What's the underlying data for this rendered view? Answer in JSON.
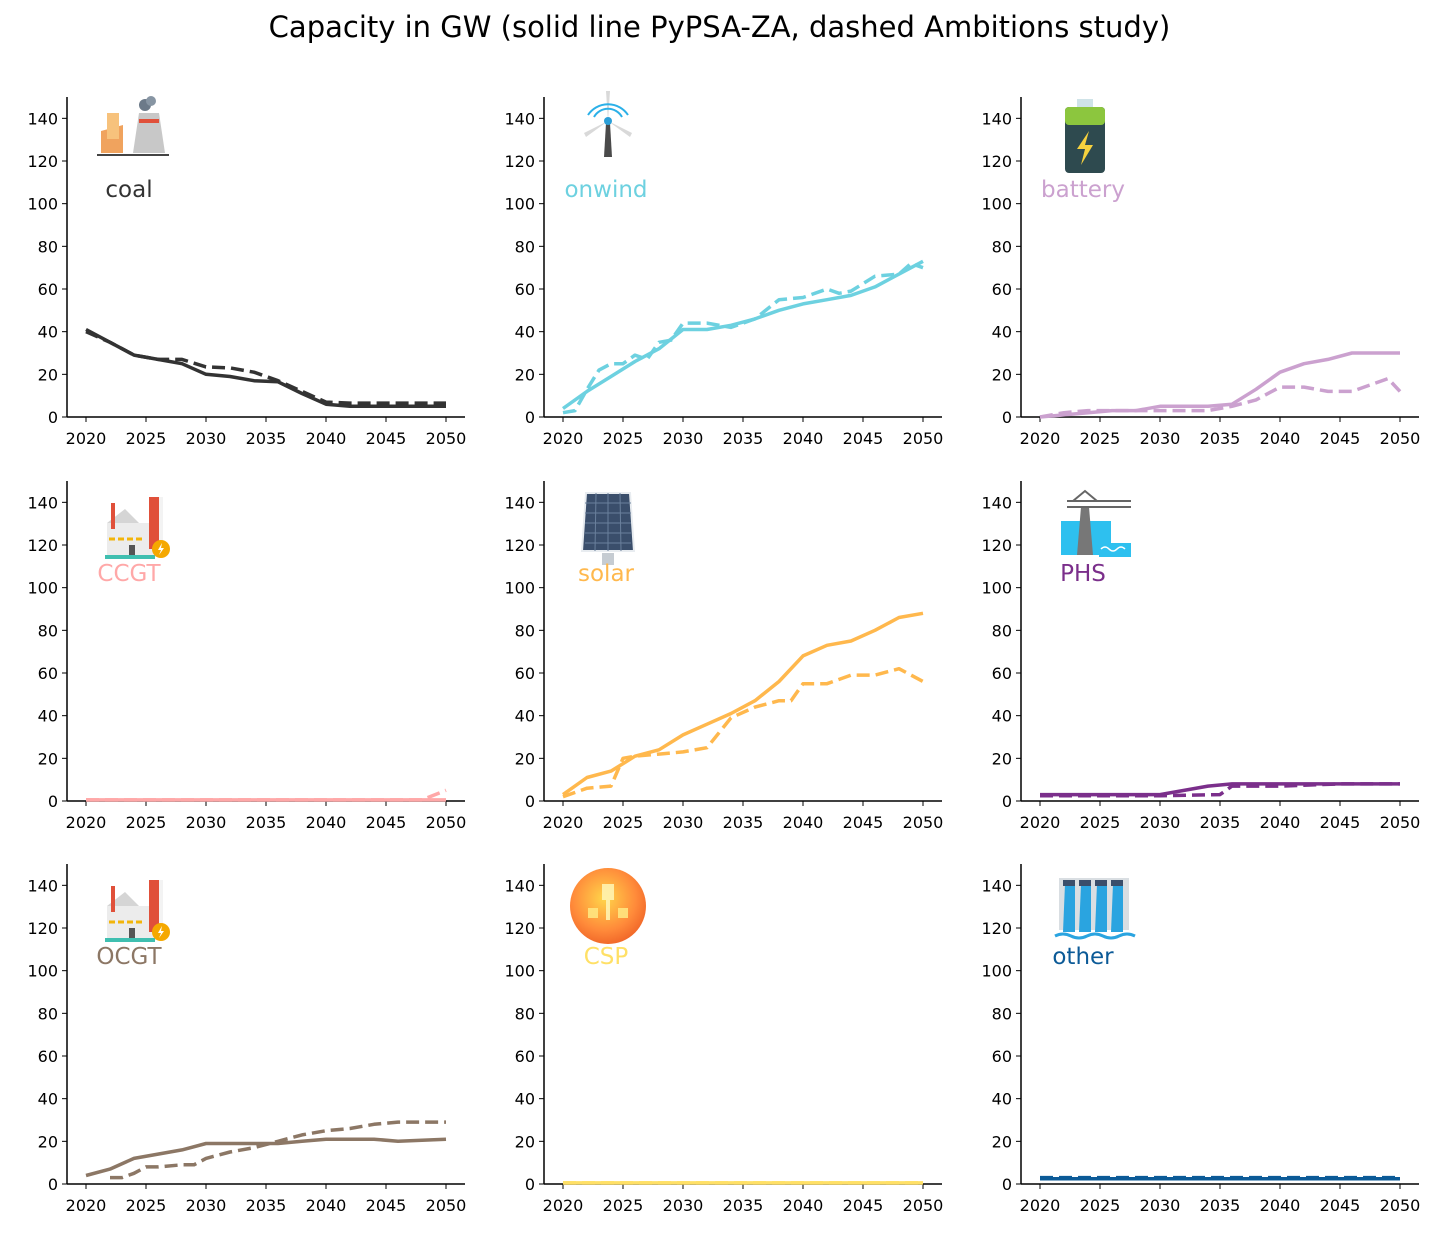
{
  "title": "Capacity in GW (solid line PyPSA-ZA, dashed Ambitions study)",
  "chart_data": [
    {
      "type": "line",
      "label": "coal",
      "label_color": "#333333",
      "icon": "power-plant-cooling-tower-icon",
      "xlim": [
        2020,
        2050
      ],
      "ylim": [
        0,
        150
      ],
      "xticks": [
        "2020",
        "2025",
        "2030",
        "2035",
        "2040",
        "2045",
        "2050"
      ],
      "yticks": [
        "0",
        "20",
        "40",
        "60",
        "80",
        "100",
        "120",
        "140"
      ],
      "series": [
        {
          "name": "PyPSA-ZA",
          "style": "solid",
          "color": "#333333",
          "x": [
            2020,
            2022,
            2024,
            2026,
            2028,
            2030,
            2032,
            2034,
            2036,
            2038,
            2040,
            2042,
            2044,
            2046,
            2048,
            2050
          ],
          "y": [
            41,
            35,
            29,
            27,
            25,
            20,
            19,
            17,
            16.5,
            11,
            6,
            5,
            5,
            5,
            5,
            5
          ]
        },
        {
          "name": "Ambitions study",
          "style": "dashed",
          "color": "#333333",
          "x": [
            2020,
            2022,
            2024,
            2026,
            2028,
            2030,
            2032,
            2034,
            2036,
            2038,
            2040,
            2042,
            2044,
            2046,
            2048,
            2050
          ],
          "y": [
            40,
            35,
            29,
            27,
            27,
            23.5,
            23,
            21,
            17,
            12,
            7,
            6.5,
            6.5,
            6.5,
            6.5,
            6.5
          ]
        }
      ]
    },
    {
      "type": "line",
      "label": "onwind",
      "label_color": "#6dd1e0",
      "icon": "wind-turbine-icon",
      "xlim": [
        2020,
        2050
      ],
      "ylim": [
        0,
        150
      ],
      "xticks": [
        "2020",
        "2025",
        "2030",
        "2035",
        "2040",
        "2045",
        "2050"
      ],
      "yticks": [
        "0",
        "20",
        "40",
        "60",
        "80",
        "100",
        "120",
        "140"
      ],
      "series": [
        {
          "name": "PyPSA-ZA",
          "style": "solid",
          "color": "#6dd1e0",
          "x": [
            2020,
            2022,
            2024,
            2026,
            2028,
            2030,
            2032,
            2034,
            2036,
            2038,
            2040,
            2042,
            2044,
            2046,
            2048,
            2050
          ],
          "y": [
            4,
            12,
            19,
            26,
            32,
            41,
            41,
            43,
            46,
            50,
            53,
            55,
            57,
            61,
            67,
            73
          ]
        },
        {
          "name": "Ambitions study",
          "style": "dashed",
          "color": "#6dd1e0",
          "x": [
            2020,
            2021,
            2022,
            2023,
            2024,
            2025,
            2026,
            2027,
            2028,
            2029,
            2030,
            2032,
            2034,
            2036,
            2038,
            2040,
            2042,
            2043,
            2044,
            2046,
            2048,
            2049,
            2050
          ],
          "y": [
            2,
            3,
            13,
            22,
            25,
            25,
            29,
            27,
            35,
            36,
            44,
            44,
            42,
            46,
            55,
            56,
            60,
            58,
            59,
            66,
            67,
            72,
            70
          ]
        }
      ]
    },
    {
      "type": "line",
      "label": "battery",
      "label_color": "#cba1cf",
      "icon": "battery-icon",
      "xlim": [
        2020,
        2050
      ],
      "ylim": [
        0,
        150
      ],
      "xticks": [
        "2020",
        "2025",
        "2030",
        "2035",
        "2040",
        "2045",
        "2050"
      ],
      "yticks": [
        "0",
        "20",
        "40",
        "60",
        "80",
        "100",
        "120",
        "140"
      ],
      "series": [
        {
          "name": "PyPSA-ZA",
          "style": "solid",
          "color": "#cba1cf",
          "x": [
            2020,
            2022,
            2024,
            2026,
            2028,
            2030,
            2032,
            2034,
            2036,
            2038,
            2040,
            2042,
            2044,
            2046,
            2048,
            2050
          ],
          "y": [
            0,
            1,
            2,
            3,
            3,
            5,
            5,
            5,
            6,
            13,
            21,
            25,
            27,
            30,
            30,
            30
          ]
        },
        {
          "name": "Ambitions study",
          "style": "dashed",
          "color": "#cba1cf",
          "x": [
            2020,
            2022,
            2024,
            2026,
            2028,
            2030,
            2032,
            2034,
            2036,
            2038,
            2040,
            2042,
            2044,
            2046,
            2048,
            2049,
            2050
          ],
          "y": [
            0,
            2,
            3,
            3,
            3,
            3,
            3,
            3,
            5,
            8,
            14,
            14,
            12,
            12,
            16,
            18,
            12
          ]
        }
      ]
    },
    {
      "type": "line",
      "label": "CCGT",
      "label_color": "#ffa8a8",
      "icon": "factory-icon",
      "xlim": [
        2020,
        2050
      ],
      "ylim": [
        0,
        150
      ],
      "xticks": [
        "2020",
        "2025",
        "2030",
        "2035",
        "2040",
        "2045",
        "2050"
      ],
      "yticks": [
        "0",
        "20",
        "40",
        "60",
        "80",
        "100",
        "120",
        "140"
      ],
      "series": [
        {
          "name": "PyPSA-ZA",
          "style": "solid",
          "color": "#ffa8a8",
          "x": [
            2020,
            2030,
            2040,
            2050
          ],
          "y": [
            0.5,
            0.5,
            0.5,
            0.5
          ]
        },
        {
          "name": "Ambitions study",
          "style": "dashed",
          "color": "#ffa8a8",
          "x": [
            2020,
            2030,
            2040,
            2046,
            2048,
            2050
          ],
          "y": [
            0.5,
            0.5,
            0.5,
            0.5,
            0.5,
            5
          ]
        }
      ]
    },
    {
      "type": "line",
      "label": "solar",
      "label_color": "#ffb84d",
      "icon": "solar-panel-icon",
      "xlim": [
        2020,
        2050
      ],
      "ylim": [
        0,
        150
      ],
      "xticks": [
        "2020",
        "2025",
        "2030",
        "2035",
        "2040",
        "2045",
        "2050"
      ],
      "yticks": [
        "0",
        "20",
        "40",
        "60",
        "80",
        "100",
        "120",
        "140"
      ],
      "series": [
        {
          "name": "PyPSA-ZA",
          "style": "solid",
          "color": "#ffb84d",
          "x": [
            2020,
            2022,
            2024,
            2026,
            2028,
            2030,
            2032,
            2034,
            2036,
            2038,
            2040,
            2042,
            2044,
            2046,
            2048,
            2050
          ],
          "y": [
            3,
            11,
            14,
            21,
            24,
            31,
            36,
            41,
            47,
            56,
            68,
            73,
            75,
            80,
            86,
            88
          ]
        },
        {
          "name": "Ambitions study",
          "style": "dashed",
          "color": "#ffb84d",
          "x": [
            2020,
            2022,
            2024,
            2025,
            2026,
            2028,
            2030,
            2032,
            2034,
            2036,
            2038,
            2039,
            2040,
            2042,
            2044,
            2046,
            2048,
            2050
          ],
          "y": [
            2,
            6,
            7,
            20,
            21,
            22,
            23,
            25,
            39,
            44,
            47,
            47,
            55,
            55,
            59,
            59,
            62,
            56
          ]
        }
      ]
    },
    {
      "type": "line",
      "label": "PHS",
      "label_color": "#7b2f8b",
      "icon": "hydro-pylon-icon",
      "xlim": [
        2020,
        2050
      ],
      "ylim": [
        0,
        150
      ],
      "xticks": [
        "2020",
        "2025",
        "2030",
        "2035",
        "2040",
        "2045",
        "2050"
      ],
      "yticks": [
        "0",
        "20",
        "40",
        "60",
        "80",
        "100",
        "120",
        "140"
      ],
      "series": [
        {
          "name": "PyPSA-ZA",
          "style": "solid",
          "color": "#7b2f8b",
          "x": [
            2020,
            2025,
            2030,
            2034,
            2036,
            2040,
            2045,
            2050
          ],
          "y": [
            3,
            3,
            3,
            7,
            8,
            8,
            8,
            8
          ]
        },
        {
          "name": "Ambitions study",
          "style": "dashed",
          "color": "#7b2f8b",
          "x": [
            2020,
            2025,
            2030,
            2035,
            2036,
            2038,
            2040,
            2045,
            2050
          ],
          "y": [
            2.5,
            2.5,
            2.5,
            3,
            7,
            7,
            7,
            8,
            8
          ]
        }
      ]
    },
    {
      "type": "line",
      "label": "OCGT",
      "label_color": "#8c7765",
      "icon": "factory-icon",
      "xlim": [
        2020,
        2050
      ],
      "ylim": [
        0,
        150
      ],
      "xticks": [
        "2020",
        "2025",
        "2030",
        "2035",
        "2040",
        "2045",
        "2050"
      ],
      "yticks": [
        "0",
        "20",
        "40",
        "60",
        "80",
        "100",
        "120",
        "140"
      ],
      "series": [
        {
          "name": "PyPSA-ZA",
          "style": "solid",
          "color": "#8c7765",
          "x": [
            2020,
            2022,
            2024,
            2026,
            2028,
            2030,
            2032,
            2034,
            2036,
            2038,
            2040,
            2042,
            2044,
            2046,
            2048,
            2050
          ],
          "y": [
            4,
            7,
            12,
            14,
            16,
            19,
            19,
            19,
            19,
            20,
            21,
            21,
            21,
            20,
            20.5,
            21
          ]
        },
        {
          "name": "Ambitions study",
          "style": "dashed",
          "color": "#8c7765",
          "x": [
            2022,
            2023,
            2024,
            2025,
            2026,
            2028,
            2029,
            2030,
            2032,
            2034,
            2036,
            2038,
            2040,
            2042,
            2044,
            2046,
            2048,
            2050
          ],
          "y": [
            3,
            3,
            5,
            8,
            8,
            9,
            9,
            12,
            15,
            17,
            20,
            23,
            25,
            26,
            28,
            29,
            29,
            29
          ]
        }
      ]
    },
    {
      "type": "line",
      "label": "CSP",
      "label_color": "#ffe066",
      "icon": "csp-tower-icon",
      "xlim": [
        2020,
        2050
      ],
      "ylim": [
        0,
        150
      ],
      "xticks": [
        "2020",
        "2025",
        "2030",
        "2035",
        "2040",
        "2045",
        "2050"
      ],
      "yticks": [
        "0",
        "20",
        "40",
        "60",
        "80",
        "100",
        "120",
        "140"
      ],
      "series": [
        {
          "name": "PyPSA-ZA",
          "style": "solid",
          "color": "#ffe066",
          "x": [
            2020,
            2050
          ],
          "y": [
            0.5,
            0.5
          ]
        },
        {
          "name": "Ambitions study",
          "style": "dashed",
          "color": "#ffe066",
          "x": [
            2020,
            2050
          ],
          "y": [
            0.5,
            0.5
          ]
        }
      ]
    },
    {
      "type": "line",
      "label": "other",
      "label_color": "#0b5a97",
      "icon": "dam-icon",
      "xlim": [
        2020,
        2050
      ],
      "ylim": [
        0,
        150
      ],
      "xticks": [
        "2020",
        "2025",
        "2030",
        "2035",
        "2040",
        "2045",
        "2050"
      ],
      "yticks": [
        "0",
        "20",
        "40",
        "60",
        "80",
        "100",
        "120",
        "140"
      ],
      "series": [
        {
          "name": "PyPSA-ZA",
          "style": "solid",
          "color": "#0b5a97",
          "x": [
            2020,
            2025,
            2030,
            2035,
            2040,
            2045,
            2050
          ],
          "y": [
            2.5,
            2.5,
            2.5,
            2.5,
            2.5,
            2.5,
            2.5
          ]
        },
        {
          "name": "Ambitions study",
          "style": "dashed",
          "color": "#0b5a97",
          "x": [
            2020,
            2025,
            2030,
            2035,
            2040,
            2045,
            2050
          ],
          "y": [
            3,
            3,
            3,
            3,
            3,
            3,
            3
          ]
        }
      ]
    }
  ]
}
